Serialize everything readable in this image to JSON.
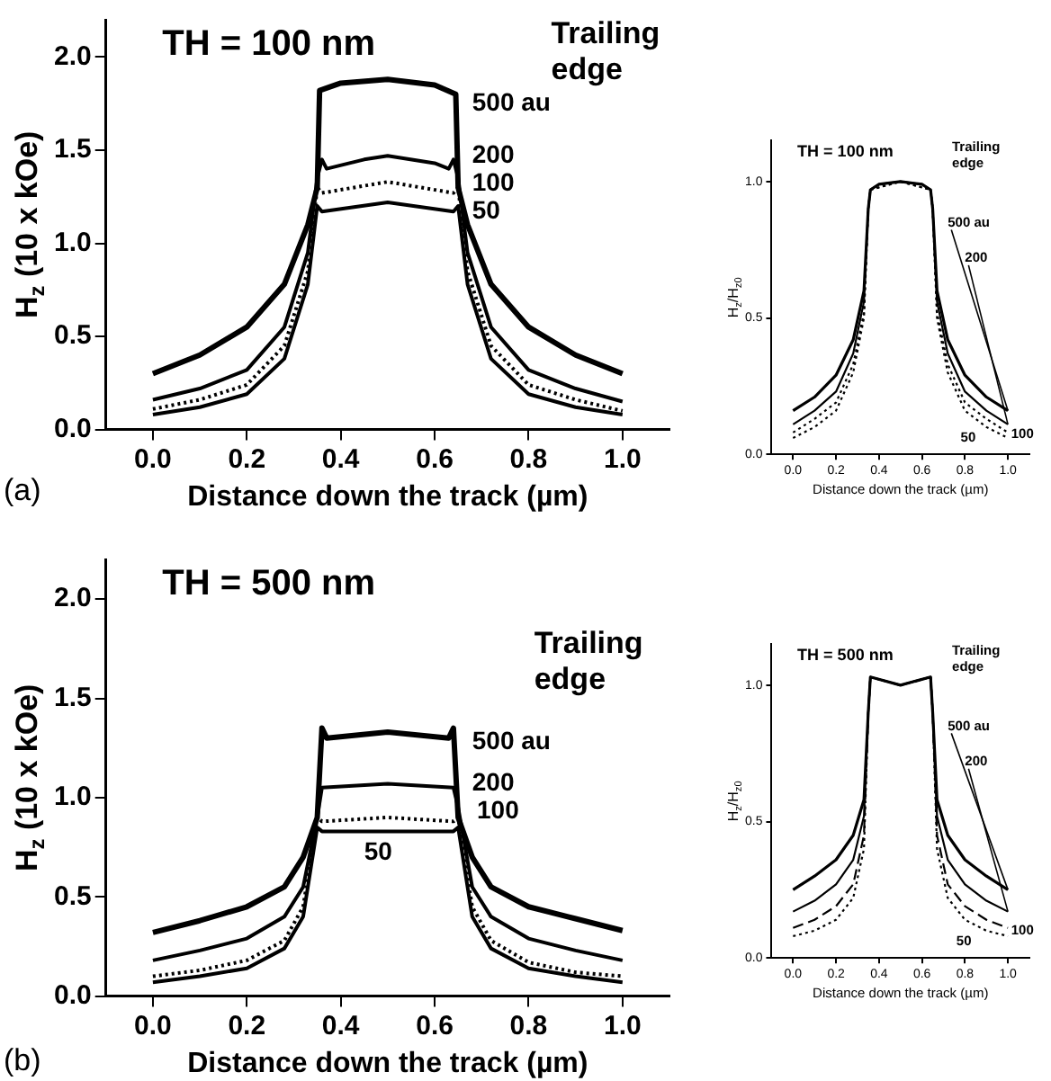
{
  "chart_data": [
    {
      "type": "line",
      "title": "TH = 100 nm",
      "xlabel": "Distance down the track (µm)",
      "ylabel": "H$_{z}$ (10 x kOe)",
      "annotations": [
        "Trailing edge",
        "(a)"
      ],
      "xlim": [
        -0.1,
        1.1
      ],
      "ylim": [
        0,
        2.2
      ],
      "xticks": [
        {
          "value": 0,
          "label": "0.0"
        },
        {
          "value": 0.2,
          "label": "0.2"
        },
        {
          "value": 0.4,
          "label": "0.4"
        },
        {
          "value": 0.6,
          "label": "0.6"
        },
        {
          "value": 0.8,
          "label": "0.8"
        },
        {
          "value": 1,
          "label": "1.0"
        }
      ],
      "yticks": [
        {
          "value": 0,
          "label": "0.0"
        },
        {
          "value": 0.5,
          "label": "0.5"
        },
        {
          "value": 1,
          "label": "1.0"
        },
        {
          "value": 1.5,
          "label": "1.5"
        },
        {
          "value": 2,
          "label": "2.0"
        }
      ],
      "grid": false,
      "legend": false,
      "marker": "none",
      "series": [
        {
          "name": "500 au",
          "color": "#000000",
          "line_style": "solid",
          "x": [
            0,
            0.1,
            0.2,
            0.28,
            0.33,
            0.35,
            0.355,
            0.4,
            0.5,
            0.6,
            0.645,
            0.65,
            0.67,
            0.72,
            0.8,
            0.9,
            1
          ],
          "values": [
            0.3,
            0.4,
            0.55,
            0.78,
            1.1,
            1.3,
            1.82,
            1.86,
            1.88,
            1.85,
            1.8,
            1.3,
            1.1,
            0.78,
            0.55,
            0.4,
            0.3
          ]
        },
        {
          "name": "200",
          "color": "#000000",
          "line_style": "solid",
          "x": [
            0,
            0.1,
            0.2,
            0.28,
            0.33,
            0.35,
            0.36,
            0.37,
            0.45,
            0.5,
            0.6,
            0.63,
            0.64,
            0.65,
            0.67,
            0.72,
            0.8,
            0.9,
            1
          ],
          "values": [
            0.16,
            0.22,
            0.32,
            0.55,
            0.95,
            1.35,
            1.45,
            1.4,
            1.45,
            1.47,
            1.43,
            1.4,
            1.45,
            1.35,
            0.95,
            0.55,
            0.32,
            0.22,
            0.15
          ]
        },
        {
          "name": "100",
          "color": "#000000",
          "line_style": "dotted",
          "x": [
            0,
            0.1,
            0.2,
            0.28,
            0.33,
            0.35,
            0.36,
            0.5,
            0.64,
            0.65,
            0.67,
            0.72,
            0.8,
            0.9,
            1
          ],
          "values": [
            0.11,
            0.16,
            0.24,
            0.45,
            0.85,
            1.3,
            1.27,
            1.33,
            1.27,
            1.3,
            0.85,
            0.45,
            0.24,
            0.16,
            0.1
          ]
        },
        {
          "name": "50",
          "color": "#000000",
          "line_style": "solid",
          "x": [
            0,
            0.1,
            0.2,
            0.28,
            0.33,
            0.35,
            0.36,
            0.5,
            0.64,
            0.65,
            0.67,
            0.72,
            0.8,
            0.9,
            1
          ],
          "values": [
            0.08,
            0.12,
            0.19,
            0.38,
            0.78,
            1.2,
            1.17,
            1.22,
            1.17,
            1.2,
            0.78,
            0.38,
            0.19,
            0.12,
            0.08
          ]
        }
      ]
    },
    {
      "type": "line",
      "title": "TH = 100 nm",
      "xlabel": "Distance down the track (µm)",
      "ylabel": "H$_{z}$/H$_{z0}$",
      "annotations": [
        "Trailing edge"
      ],
      "xlim": [
        -0.1,
        1.1
      ],
      "ylim": [
        0,
        1.15
      ],
      "xticks": [
        {
          "value": 0,
          "label": "0.0"
        },
        {
          "value": 0.2,
          "label": "0.2"
        },
        {
          "value": 0.4,
          "label": "0.4"
        },
        {
          "value": 0.6,
          "label": "0.6"
        },
        {
          "value": 0.8,
          "label": "0.8"
        },
        {
          "value": 1,
          "label": "1.0"
        }
      ],
      "yticks": [
        {
          "value": 0,
          "label": "0.0"
        },
        {
          "value": 0.5,
          "label": "0.5"
        },
        {
          "value": 1,
          "label": "1.0"
        }
      ],
      "grid": false,
      "legend": false,
      "marker": "none",
      "series": [
        {
          "name": "500 au",
          "color": "#000000",
          "line_style": "solid",
          "x": [
            0,
            0.1,
            0.2,
            0.28,
            0.33,
            0.35,
            0.36,
            0.4,
            0.5,
            0.6,
            0.64,
            0.65,
            0.67,
            0.72,
            0.8,
            0.9,
            1
          ],
          "values": [
            0.16,
            0.21,
            0.29,
            0.42,
            0.6,
            0.9,
            0.97,
            0.99,
            1,
            0.99,
            0.97,
            0.9,
            0.6,
            0.42,
            0.29,
            0.21,
            0.16
          ]
        },
        {
          "name": "200",
          "color": "#000000",
          "line_style": "solid",
          "x": [
            0,
            0.1,
            0.2,
            0.28,
            0.33,
            0.35,
            0.36,
            0.4,
            0.5,
            0.6,
            0.64,
            0.65,
            0.67,
            0.72,
            0.8,
            0.9,
            1
          ],
          "values": [
            0.11,
            0.16,
            0.23,
            0.37,
            0.56,
            0.9,
            0.97,
            0.99,
            1,
            0.99,
            0.97,
            0.9,
            0.56,
            0.37,
            0.23,
            0.16,
            0.11
          ]
        },
        {
          "name": "100",
          "color": "#000000",
          "line_style": "dotted",
          "x": [
            0,
            0.1,
            0.2,
            0.28,
            0.33,
            0.35,
            0.36,
            0.5,
            0.64,
            0.65,
            0.67,
            0.72,
            0.8,
            0.9,
            1
          ],
          "values": [
            0.08,
            0.13,
            0.19,
            0.33,
            0.52,
            0.9,
            0.97,
            1,
            0.97,
            0.9,
            0.52,
            0.33,
            0.19,
            0.13,
            0.08
          ]
        },
        {
          "name": "50",
          "color": "#000000",
          "line_style": "dotted",
          "x": [
            0,
            0.1,
            0.2,
            0.28,
            0.33,
            0.35,
            0.36,
            0.5,
            0.64,
            0.65,
            0.67,
            0.72,
            0.8,
            0.9,
            1
          ],
          "values": [
            0.06,
            0.1,
            0.16,
            0.3,
            0.5,
            0.9,
            0.97,
            1,
            0.97,
            0.9,
            0.5,
            0.3,
            0.16,
            0.1,
            0.06
          ]
        }
      ]
    },
    {
      "type": "line",
      "title": "TH = 500 nm",
      "xlabel": "Distance down the track (µm)",
      "ylabel": "H$_{z}$ (10 x kOe)",
      "annotations": [
        "Trailing edge",
        "(b)"
      ],
      "xlim": [
        -0.1,
        1.1
      ],
      "ylim": [
        0,
        2.2
      ],
      "xticks": [
        {
          "value": 0,
          "label": "0.0"
        },
        {
          "value": 0.2,
          "label": "0.2"
        },
        {
          "value": 0.4,
          "label": "0.4"
        },
        {
          "value": 0.6,
          "label": "0.6"
        },
        {
          "value": 0.8,
          "label": "0.8"
        },
        {
          "value": 1,
          "label": "1.0"
        }
      ],
      "yticks": [
        {
          "value": 0,
          "label": "0.0"
        },
        {
          "value": 0.5,
          "label": "0.5"
        },
        {
          "value": 1,
          "label": "1.0"
        },
        {
          "value": 1.5,
          "label": "1.5"
        },
        {
          "value": 2,
          "label": "2.0"
        }
      ],
      "grid": false,
      "legend": false,
      "marker": "none",
      "series": [
        {
          "name": "500 au",
          "color": "#000000",
          "line_style": "solid",
          "x": [
            0,
            0.1,
            0.2,
            0.28,
            0.32,
            0.35,
            0.36,
            0.37,
            0.5,
            0.63,
            0.64,
            0.65,
            0.68,
            0.72,
            0.8,
            0.9,
            1
          ],
          "values": [
            0.32,
            0.38,
            0.45,
            0.55,
            0.7,
            0.9,
            1.35,
            1.3,
            1.33,
            1.3,
            1.35,
            0.9,
            0.7,
            0.55,
            0.45,
            0.39,
            0.33
          ]
        },
        {
          "name": "200",
          "color": "#000000",
          "line_style": "solid",
          "x": [
            0,
            0.1,
            0.2,
            0.28,
            0.32,
            0.35,
            0.36,
            0.5,
            0.64,
            0.65,
            0.68,
            0.72,
            0.8,
            0.9,
            1
          ],
          "values": [
            0.18,
            0.23,
            0.29,
            0.4,
            0.55,
            0.9,
            1.05,
            1.07,
            1.05,
            0.95,
            0.55,
            0.4,
            0.29,
            0.23,
            0.18
          ]
        },
        {
          "name": "100",
          "color": "#000000",
          "line_style": "dotted",
          "x": [
            0,
            0.1,
            0.2,
            0.28,
            0.32,
            0.35,
            0.36,
            0.5,
            0.64,
            0.65,
            0.68,
            0.72,
            0.8,
            0.9,
            1
          ],
          "values": [
            0.1,
            0.13,
            0.18,
            0.28,
            0.45,
            0.9,
            0.88,
            0.9,
            0.88,
            0.9,
            0.45,
            0.28,
            0.17,
            0.12,
            0.1
          ]
        },
        {
          "name": "50",
          "color": "#000000",
          "line_style": "solid",
          "x": [
            0,
            0.1,
            0.2,
            0.28,
            0.32,
            0.35,
            0.36,
            0.5,
            0.64,
            0.65,
            0.68,
            0.72,
            0.8,
            0.9,
            1
          ],
          "values": [
            0.07,
            0.1,
            0.14,
            0.24,
            0.4,
            0.85,
            0.83,
            0.83,
            0.83,
            0.85,
            0.4,
            0.24,
            0.14,
            0.1,
            0.07
          ]
        }
      ]
    },
    {
      "type": "line",
      "title": "TH = 500 nm",
      "xlabel": "Distance down the track (µm)",
      "ylabel": "H$_{z}$/H$_{z0}$",
      "annotations": [
        "Trailing edge"
      ],
      "xlim": [
        -0.1,
        1.1
      ],
      "ylim": [
        0,
        1.15
      ],
      "xticks": [
        {
          "value": 0,
          "label": "0.0"
        },
        {
          "value": 0.2,
          "label": "0.2"
        },
        {
          "value": 0.4,
          "label": "0.4"
        },
        {
          "value": 0.6,
          "label": "0.6"
        },
        {
          "value": 0.8,
          "label": "0.8"
        },
        {
          "value": 1,
          "label": "1.0"
        }
      ],
      "yticks": [
        {
          "value": 0,
          "label": "0.0"
        },
        {
          "value": 0.5,
          "label": "0.5"
        },
        {
          "value": 1,
          "label": "1.0"
        }
      ],
      "grid": false,
      "legend": false,
      "marker": "none",
      "series": [
        {
          "name": "500 au",
          "color": "#000000",
          "line_style": "solid",
          "x": [
            0,
            0.1,
            0.2,
            0.28,
            0.33,
            0.35,
            0.36,
            0.5,
            0.64,
            0.65,
            0.67,
            0.72,
            0.8,
            0.9,
            1
          ],
          "values": [
            0.25,
            0.3,
            0.36,
            0.45,
            0.58,
            0.9,
            1.03,
            1,
            1.03,
            0.9,
            0.58,
            0.45,
            0.36,
            0.3,
            0.25
          ]
        },
        {
          "name": "200",
          "color": "#000000",
          "line_style": "solid",
          "x": [
            0,
            0.1,
            0.2,
            0.28,
            0.33,
            0.35,
            0.36,
            0.5,
            0.64,
            0.65,
            0.67,
            0.72,
            0.8,
            0.9,
            1
          ],
          "values": [
            0.17,
            0.21,
            0.27,
            0.36,
            0.52,
            0.9,
            1.03,
            1,
            1.03,
            0.9,
            0.52,
            0.36,
            0.27,
            0.21,
            0.17
          ]
        },
        {
          "name": "100",
          "color": "#000000",
          "line_style": "dashed",
          "x": [
            0,
            0.1,
            0.2,
            0.28,
            0.33,
            0.35,
            0.36,
            0.5,
            0.64,
            0.65,
            0.67,
            0.72,
            0.8,
            0.9,
            1
          ],
          "values": [
            0.11,
            0.14,
            0.19,
            0.27,
            0.45,
            0.9,
            1.03,
            1,
            1.03,
            0.9,
            0.45,
            0.27,
            0.19,
            0.14,
            0.11
          ]
        },
        {
          "name": "50",
          "color": "#000000",
          "line_style": "dotted",
          "x": [
            0,
            0.1,
            0.2,
            0.28,
            0.33,
            0.35,
            0.36,
            0.5,
            0.64,
            0.65,
            0.67,
            0.72,
            0.8,
            0.9,
            1
          ],
          "values": [
            0.08,
            0.1,
            0.14,
            0.22,
            0.4,
            0.9,
            1.03,
            1,
            1.03,
            0.9,
            0.4,
            0.22,
            0.14,
            0.1,
            0.08
          ]
        }
      ]
    }
  ]
}
